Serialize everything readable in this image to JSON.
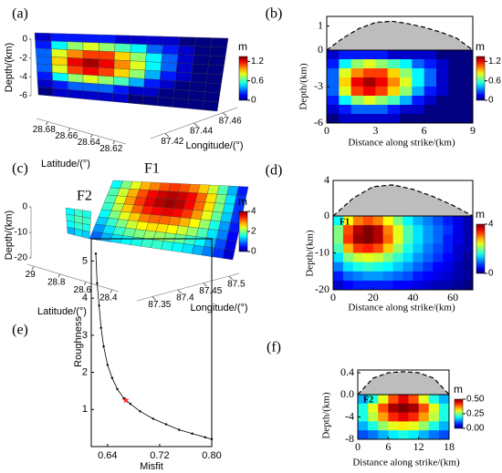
{
  "chart_data": [
    {
      "type": "surface3d",
      "panel_label": "(a)",
      "zlabel": "Depth/(km)",
      "latlabel": "Latitude/(°)",
      "lonlabel": "Longitude/(°)",
      "zlim": [
        -6,
        0
      ],
      "zticks": [
        0,
        -2,
        -4,
        -6
      ],
      "latlim": [
        28.69,
        28.61
      ],
      "latticks": [
        28.68,
        28.66,
        28.64,
        28.62
      ],
      "lonlim": [
        87.41,
        87.47
      ],
      "lonticks": [
        87.42,
        87.44,
        87.46
      ],
      "clim": [
        0,
        1.35
      ],
      "cticks": [
        0,
        0.6,
        1.2
      ],
      "colorbar_title": "m",
      "surfaces": [
        {
          "values": [
            [
              0.1,
              0.2,
              0.2,
              0.2,
              0.2,
              0.1,
              0.1,
              0.1,
              0.1,
              0,
              0,
              0
            ],
            [
              0.2,
              0.5,
              0.7,
              0.8,
              0.7,
              0.6,
              0.5,
              0.3,
              0.2,
              0.1,
              0,
              0
            ],
            [
              0.3,
              0.8,
              1.0,
              1.1,
              1.1,
              0.9,
              0.7,
              0.5,
              0.3,
              0.1,
              0,
              0
            ],
            [
              0.3,
              0.9,
              1.2,
              1.3,
              1.2,
              1.0,
              0.8,
              0.5,
              0.3,
              0.1,
              0,
              0
            ],
            [
              0.3,
              0.8,
              1.1,
              1.2,
              1.1,
              0.9,
              0.7,
              0.4,
              0.2,
              0.1,
              0,
              0
            ],
            [
              0.2,
              0.5,
              0.7,
              0.8,
              0.7,
              0.6,
              0.4,
              0.2,
              0.1,
              0,
              0,
              0
            ],
            [
              0.1,
              0.2,
              0.3,
              0.3,
              0.3,
              0.2,
              0.1,
              0.1,
              0,
              0,
              0,
              0
            ],
            [
              0,
              0.1,
              0.1,
              0.1,
              0.1,
              0.1,
              0,
              0,
              0,
              0,
              0,
              0
            ]
          ]
        }
      ]
    },
    {
      "type": "heatmap",
      "panel_label": "(b)",
      "xlabel": "Distance along strike/(km)",
      "ylabel": "Depth/(km)",
      "xlim": [
        0,
        9
      ],
      "xticks": [
        0,
        3,
        6,
        9
      ],
      "ylim": [
        -6,
        0
      ],
      "yticks": [
        -6,
        -3
      ],
      "clim": [
        0,
        1.35
      ],
      "cticks": [
        0,
        0.6,
        1.2
      ],
      "colorbar_title": "m",
      "values": [
        [
          0.1,
          0.2,
          0.2,
          0.2,
          0.2,
          0.1,
          0.1,
          0.1,
          0.1,
          0,
          0,
          0
        ],
        [
          0.2,
          0.5,
          0.7,
          0.8,
          0.7,
          0.6,
          0.5,
          0.3,
          0.2,
          0.1,
          0,
          0
        ],
        [
          0.3,
          0.8,
          1.0,
          1.1,
          1.1,
          0.9,
          0.7,
          0.5,
          0.3,
          0.1,
          0,
          0
        ],
        [
          0.3,
          0.9,
          1.2,
          1.3,
          1.2,
          1.0,
          0.8,
          0.5,
          0.3,
          0.1,
          0,
          0
        ],
        [
          0.3,
          0.8,
          1.1,
          1.2,
          1.1,
          0.9,
          0.7,
          0.4,
          0.2,
          0.1,
          0,
          0
        ],
        [
          0.2,
          0.5,
          0.7,
          0.8,
          0.7,
          0.6,
          0.4,
          0.2,
          0.1,
          0,
          0,
          0
        ],
        [
          0.1,
          0.2,
          0.3,
          0.3,
          0.3,
          0.2,
          0.1,
          0.1,
          0,
          0,
          0,
          0
        ],
        [
          0,
          0.1,
          0.1,
          0.1,
          0.1,
          0.1,
          0,
          0,
          0,
          0,
          0,
          0
        ]
      ],
      "profile": {
        "x": [
          0,
          1,
          2,
          3,
          4,
          5,
          6,
          7,
          8,
          9
        ],
        "values": [
          0,
          0.5,
          0.9,
          1.15,
          1.2,
          1.1,
          0.95,
          0.75,
          0.5,
          0
        ],
        "ylim": [
          0,
          1.4
        ],
        "yticks": [
          0,
          1
        ]
      }
    },
    {
      "type": "surface3d",
      "panel_label": "(c)",
      "zlabel": "Depth/(km)",
      "latlabel": "Latitude/(°)",
      "lonlabel": "Longitude/(°)",
      "zlim": [
        -20,
        0
      ],
      "zticks": [
        0,
        -10,
        -20
      ],
      "latlim": [
        29.05,
        28.35
      ],
      "latticks": [
        29,
        28.8,
        28.6,
        28.4
      ],
      "lonlim": [
        87.32,
        87.52
      ],
      "lonticks": [
        87.35,
        87.4,
        87.45,
        87.5
      ],
      "clim": [
        0,
        4
      ],
      "cticks": [
        0,
        2,
        4
      ],
      "colorbar_title": "m",
      "surfaces": [
        {
          "name": "F1",
          "values": [
            [
              1.5,
              2,
              2.4,
              2.8,
              3,
              3.2,
              3.3,
              3.2,
              3,
              2.7,
              2.3,
              1.8,
              1.2,
              0.6
            ],
            [
              1.8,
              2.3,
              2.8,
              3.2,
              3.5,
              3.7,
              3.8,
              3.7,
              3.5,
              3.1,
              2.6,
              2,
              1.4,
              0.7
            ],
            [
              1.8,
              2.4,
              2.9,
              3.3,
              3.6,
              3.8,
              3.9,
              3.8,
              3.5,
              3.1,
              2.6,
              2,
              1.4,
              0.7
            ],
            [
              1.7,
              2.2,
              2.7,
              3.1,
              3.4,
              3.5,
              3.6,
              3.5,
              3.3,
              2.9,
              2.4,
              1.9,
              1.3,
              0.7
            ],
            [
              1.5,
              2,
              2.4,
              2.7,
              3,
              3.1,
              3.1,
              3,
              2.8,
              2.5,
              2.1,
              1.6,
              1.1,
              0.6
            ],
            [
              1.3,
              1.7,
              2,
              2.3,
              2.5,
              2.6,
              2.6,
              2.5,
              2.3,
              2.1,
              1.8,
              1.4,
              1,
              0.5
            ],
            [
              1.1,
              1.4,
              1.7,
              1.9,
              2,
              2.1,
              2.1,
              2,
              1.9,
              1.7,
              1.5,
              1.2,
              0.8,
              0.4
            ],
            [
              0.9,
              1.2,
              1.4,
              1.5,
              1.6,
              1.7,
              1.7,
              1.6,
              1.5,
              1.4,
              1.2,
              1,
              0.7,
              0.3
            ]
          ]
        },
        {
          "name": "F2",
          "values": [
            [
              1.5,
              1.7,
              1.6
            ],
            [
              1.6,
              1.8,
              1.7
            ],
            [
              1.5,
              1.7,
              1.6
            ],
            [
              1.2,
              1.4,
              1.3
            ]
          ]
        }
      ]
    },
    {
      "type": "heatmap",
      "panel_label": "(d)",
      "xlabel": "Distance along strike/(km)",
      "ylabel": "Depth/(km)",
      "annotation": "F1",
      "xlim": [
        0,
        70
      ],
      "xticks": [
        0,
        20,
        40,
        60
      ],
      "ylim": [
        -20,
        0
      ],
      "yticks": [
        -20,
        -10
      ],
      "clim": [
        0,
        4
      ],
      "cticks": [
        0,
        4
      ],
      "colorbar_title": "m",
      "values": [
        [
          1.5,
          2.5,
          3,
          3.2,
          3,
          2.5,
          2,
          1.5,
          1.2,
          1,
          0.8,
          0.6,
          0.4,
          0.2
        ],
        [
          2,
          3.2,
          3.8,
          4,
          3.8,
          3,
          2.4,
          1.8,
          1.4,
          1.1,
          0.9,
          0.7,
          0.4,
          0.2
        ],
        [
          2,
          3.3,
          3.9,
          4,
          3.8,
          3.1,
          2.4,
          1.8,
          1.4,
          1.1,
          0.9,
          0.6,
          0.4,
          0.2
        ],
        [
          1.8,
          2.8,
          3.3,
          3.4,
          3.2,
          2.7,
          2.1,
          1.6,
          1.3,
          1,
          0.8,
          0.6,
          0.3,
          0.2
        ],
        [
          1.4,
          2,
          2.3,
          2.4,
          2.3,
          2,
          1.7,
          1.4,
          1.1,
          0.9,
          0.7,
          0.5,
          0.3,
          0.1
        ],
        [
          1,
          1.4,
          1.6,
          1.7,
          1.6,
          1.5,
          1.3,
          1.1,
          0.9,
          0.7,
          0.5,
          0.4,
          0.2,
          0.1
        ],
        [
          0.6,
          0.9,
          1,
          1.1,
          1.1,
          1,
          0.9,
          0.8,
          0.6,
          0.5,
          0.4,
          0.3,
          0.2,
          0.1
        ],
        [
          0.3,
          0.5,
          0.6,
          0.6,
          0.6,
          0.6,
          0.5,
          0.5,
          0.4,
          0.3,
          0.2,
          0.2,
          0.1,
          0
        ]
      ],
      "profile": {
        "x": [
          0,
          10,
          20,
          30,
          40,
          50,
          60,
          70
        ],
        "values": [
          0,
          2,
          3.3,
          3.5,
          3,
          2.2,
          1.2,
          0
        ],
        "ylim": [
          0,
          4
        ],
        "yticks": [
          0,
          4
        ]
      }
    },
    {
      "type": "line",
      "panel_label": "(e)",
      "xlabel": "Misfit",
      "ylabel": "Roughness",
      "color": "#000000",
      "xlim": [
        0.615,
        0.8
      ],
      "xticks": [
        0.64,
        0.72,
        {
          "value": 0.8,
          "label": "0.80"
        }
      ],
      "ylim": [
        0,
        5.6
      ],
      "yticks": [
        1,
        2,
        3,
        4,
        5
      ],
      "x": [
        0.622,
        0.624,
        0.627,
        0.63,
        0.634,
        0.64,
        0.647,
        0.655,
        0.665,
        0.675,
        0.69,
        0.71,
        0.73,
        0.75,
        0.77,
        0.79,
        0.8
      ],
      "values": [
        5.2,
        4.4,
        3.8,
        3.2,
        2.7,
        2.2,
        1.85,
        1.55,
        1.3,
        1.15,
        0.95,
        0.75,
        0.6,
        0.45,
        0.35,
        0.25,
        0.2
      ],
      "highlight": {
        "x": 0.668,
        "y": 1.25,
        "color": "#ff2a2a"
      }
    },
    {
      "type": "heatmap",
      "panel_label": "(f)",
      "xlabel": "Distance along strike/(km)",
      "ylabel": "Depth/(km)",
      "annotation": "F2",
      "xlim": [
        0,
        18
      ],
      "xticks": [
        0,
        6,
        12,
        18
      ],
      "ylim": [
        -8,
        0
      ],
      "yticks": [
        -8,
        -4
      ],
      "clim": [
        0,
        0.5
      ],
      "cticks": [
        {
          "value": 0,
          "label": "0.00"
        },
        0.25,
        {
          "value": 0.5,
          "label": "0.50"
        }
      ],
      "colorbar_title": "m",
      "values": [
        [
          0.15,
          0.2,
          0.3,
          0.4,
          0.45,
          0.4,
          0.3,
          0.2,
          0.15
        ],
        [
          0.2,
          0.3,
          0.4,
          0.48,
          0.5,
          0.48,
          0.4,
          0.3,
          0.2
        ],
        [
          0.2,
          0.28,
          0.36,
          0.42,
          0.45,
          0.42,
          0.36,
          0.28,
          0.2
        ],
        [
          0.15,
          0.2,
          0.26,
          0.3,
          0.32,
          0.3,
          0.26,
          0.2,
          0.15
        ],
        [
          0.1,
          0.12,
          0.15,
          0.18,
          0.2,
          0.18,
          0.15,
          0.12,
          0.1
        ]
      ],
      "profile": {
        "x": [
          0,
          3,
          6,
          9,
          12,
          15,
          18
        ],
        "values": [
          0,
          0.3,
          0.4,
          0.42,
          0.4,
          0.3,
          0
        ],
        "ylim": [
          0,
          0.45
        ],
        "yticks": [
          {
            "value": 0,
            "label": "0.0"
          },
          0.4
        ]
      }
    }
  ]
}
